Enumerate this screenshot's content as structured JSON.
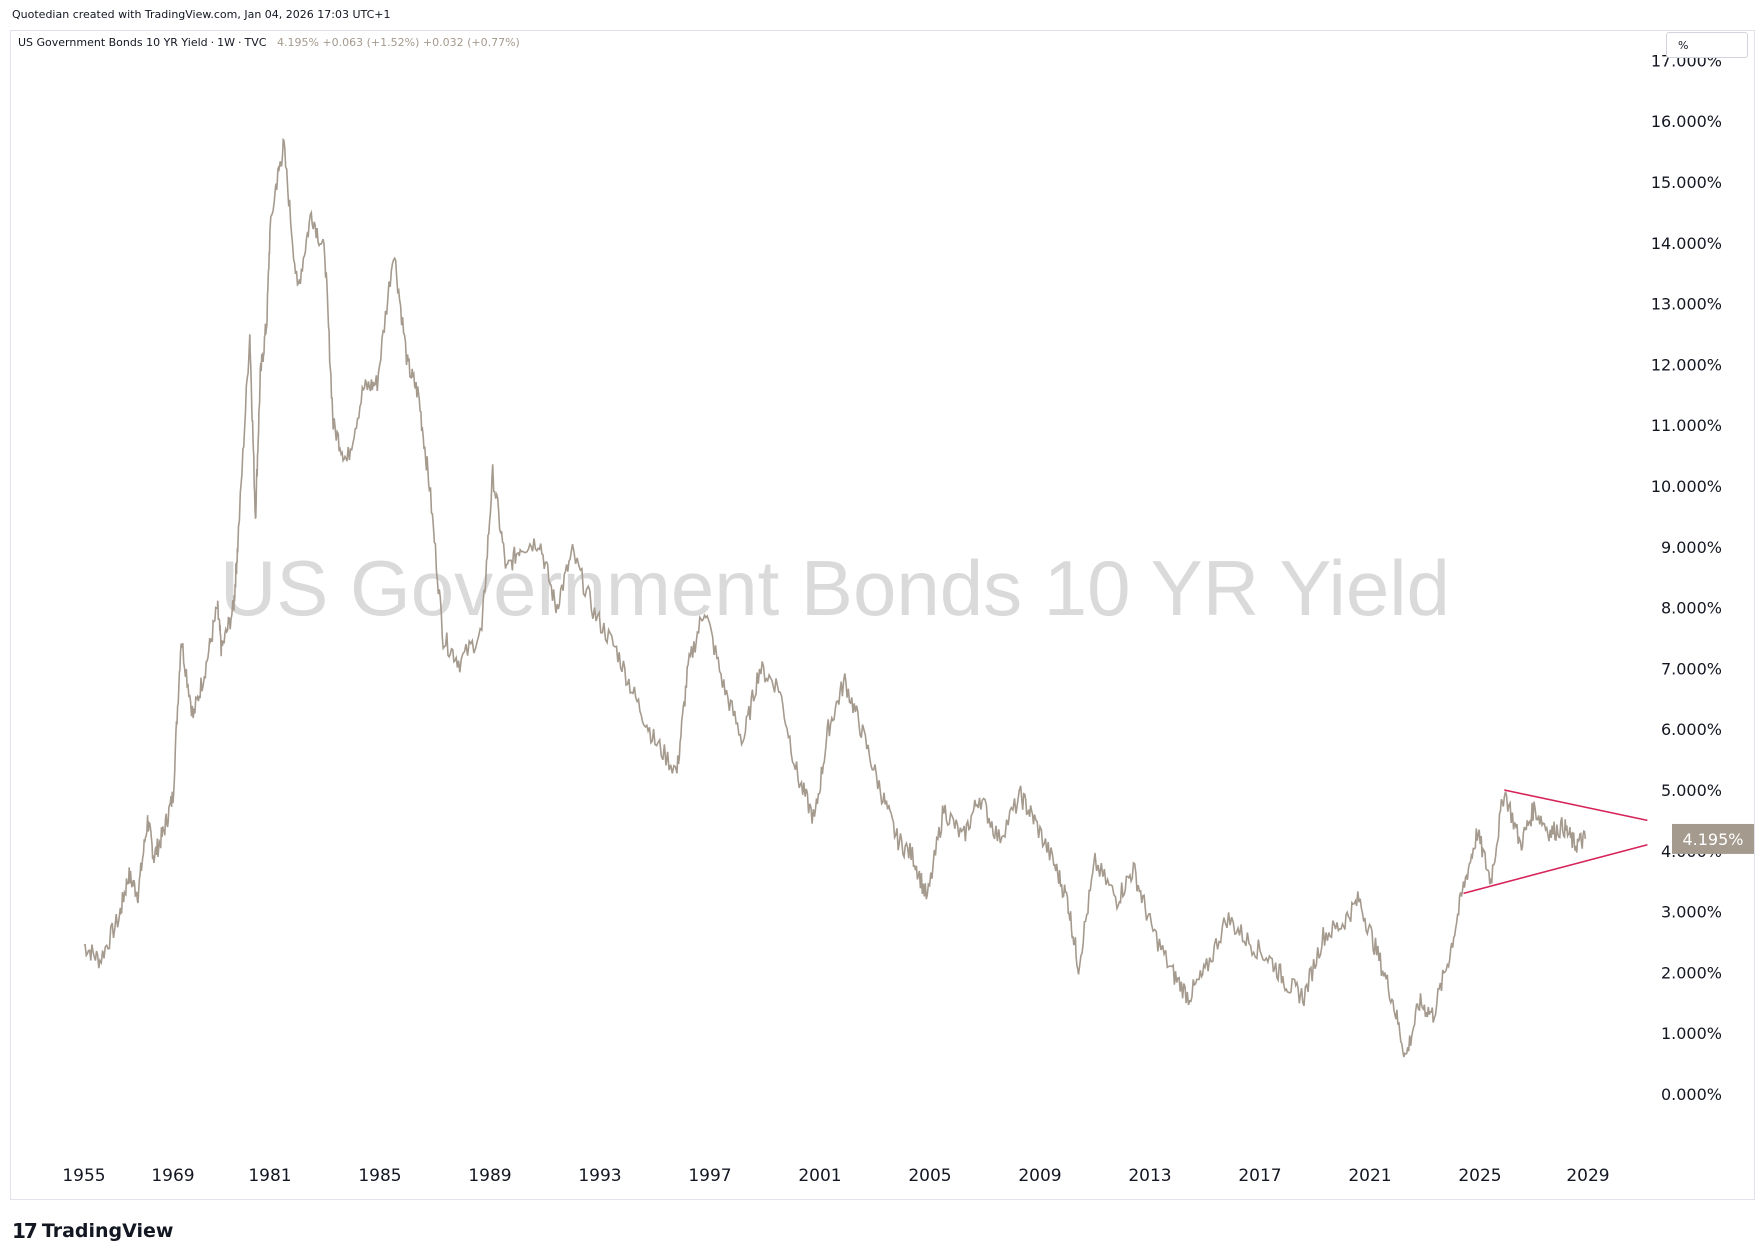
{
  "header": {
    "caption": "Quotedian created with TradingView.com, Jan 04, 2026 17:03 UTC+1"
  },
  "legend": {
    "symbol": "US Government Bonds 10 YR Yield",
    "interval": "1W",
    "source": "TVC",
    "last": "4.195%",
    "change": "+0.063",
    "change_pct": "(+1.52%)",
    "change2": "+0.032",
    "change2_pct": "(+0.77%)"
  },
  "unit_button": "%",
  "watermark": "US Government Bonds 10 YR Yield",
  "price_badge": "4.195%",
  "footer": {
    "brand": "TradingView"
  },
  "colors": {
    "series": "#a59a8e",
    "triangle": "#d6245b",
    "badge_bg": "#a59a8e",
    "watermark": "#dadada"
  },
  "chart_data": {
    "type": "line",
    "title": "US Government Bonds 10 YR Yield",
    "ylim": [
      0,
      17
    ],
    "y_ticks": [
      "0.000%",
      "1.000%",
      "2.000%",
      "3.000%",
      "4.000%",
      "5.000%",
      "6.000%",
      "7.000%",
      "8.000%",
      "9.000%",
      "10.000%",
      "11.000%",
      "12.000%",
      "13.000%",
      "14.000%",
      "15.000%",
      "16.000%",
      "17.000%"
    ],
    "x_ticks": [
      "1955",
      "1969",
      "1981",
      "1985",
      "1989",
      "1993",
      "1997",
      "2001",
      "2005",
      "2009",
      "2013",
      "2017",
      "2021",
      "2025",
      "2029"
    ],
    "series": [
      {
        "points": [
          [
            1955.0,
            2.45
          ],
          [
            1957.5,
            2.2
          ],
          [
            1960.5,
            2.9
          ],
          [
            1962.0,
            3.6
          ],
          [
            1963.5,
            3.3
          ],
          [
            1965.0,
            4.5
          ],
          [
            1966.0,
            3.9
          ],
          [
            1967.5,
            4.3
          ],
          [
            1969.0,
            4.9
          ],
          [
            1970.0,
            7.5
          ],
          [
            1971.5,
            6.2
          ],
          [
            1973.0,
            7.0
          ],
          [
            1974.5,
            8.0
          ],
          [
            1975.0,
            7.3
          ],
          [
            1976.5,
            8.0
          ],
          [
            1977.0,
            9.0
          ],
          [
            1978.5,
            12.5
          ],
          [
            1979.2,
            9.5
          ],
          [
            1979.8,
            11.8
          ],
          [
            1980.6,
            12.7
          ],
          [
            1981.2,
            14.9
          ],
          [
            1981.5,
            15.6
          ],
          [
            1982.0,
            13.2
          ],
          [
            1982.5,
            14.5
          ],
          [
            1983.0,
            13.8
          ],
          [
            1983.3,
            11.0
          ],
          [
            1983.8,
            10.4
          ],
          [
            1984.4,
            11.6
          ],
          [
            1984.9,
            11.7
          ],
          [
            1985.5,
            13.9
          ],
          [
            1986.0,
            12.0
          ],
          [
            1986.4,
            11.5
          ],
          [
            1986.8,
            10.0
          ],
          [
            1987.3,
            7.5
          ],
          [
            1987.9,
            7.1
          ],
          [
            1988.7,
            7.6
          ],
          [
            1989.1,
            10.2
          ],
          [
            1989.6,
            8.6
          ],
          [
            1990.1,
            9.0
          ],
          [
            1990.8,
            9.1
          ],
          [
            1991.4,
            8.0
          ],
          [
            1992.0,
            8.9
          ],
          [
            1992.8,
            7.9
          ],
          [
            1993.6,
            7.3
          ],
          [
            1994.3,
            6.5
          ],
          [
            1995.0,
            5.8
          ],
          [
            1995.8,
            5.3
          ],
          [
            1996.2,
            7.0
          ],
          [
            1996.8,
            8.0
          ],
          [
            1997.5,
            6.7
          ],
          [
            1998.2,
            5.8
          ],
          [
            1998.8,
            7.0
          ],
          [
            1999.5,
            6.7
          ],
          [
            2000.2,
            5.2
          ],
          [
            2000.8,
            4.5
          ],
          [
            2001.3,
            6.0
          ],
          [
            2001.9,
            6.8
          ],
          [
            2002.5,
            6.0
          ],
          [
            2003.2,
            5.0
          ],
          [
            2003.8,
            4.2
          ],
          [
            2004.4,
            3.9
          ],
          [
            2004.9,
            3.2
          ],
          [
            2005.5,
            4.7
          ],
          [
            2006.2,
            4.2
          ],
          [
            2006.8,
            4.9
          ],
          [
            2007.5,
            4.2
          ],
          [
            2008.3,
            4.9
          ],
          [
            2008.8,
            4.5
          ],
          [
            2009.5,
            3.8
          ],
          [
            2010.0,
            3.2
          ],
          [
            2010.4,
            2.1
          ],
          [
            2011.0,
            3.8
          ],
          [
            2011.8,
            3.2
          ],
          [
            2012.4,
            3.7
          ],
          [
            2013.0,
            2.8
          ],
          [
            2013.8,
            2.0
          ],
          [
            2014.4,
            1.6
          ],
          [
            2015.0,
            2.0
          ],
          [
            2015.8,
            2.9
          ],
          [
            2016.6,
            2.5
          ],
          [
            2017.4,
            2.2
          ],
          [
            2018.0,
            1.8
          ],
          [
            2018.6,
            1.6
          ],
          [
            2019.3,
            2.6
          ],
          [
            2020.0,
            2.8
          ],
          [
            2020.6,
            3.2
          ],
          [
            2021.2,
            2.4
          ],
          [
            2021.8,
            1.6
          ],
          [
            2022.3,
            0.6
          ],
          [
            2022.8,
            1.5
          ],
          [
            2023.3,
            1.3
          ],
          [
            2023.9,
            2.3
          ],
          [
            2024.4,
            3.4
          ],
          [
            2024.9,
            4.3
          ],
          [
            2025.4,
            3.5
          ],
          [
            2025.9,
            5.0
          ],
          [
            2026.5,
            4.1
          ],
          [
            2027.0,
            4.7
          ],
          [
            2027.6,
            4.3
          ],
          [
            2028.1,
            4.4
          ],
          [
            2028.5,
            4.1
          ],
          [
            2028.9,
            4.195
          ]
        ]
      }
    ],
    "annotations": [
      {
        "type": "triangle",
        "upper": [
          [
            2025.9,
            5.0
          ],
          [
            2031.2,
            4.5
          ]
        ],
        "lower": [
          [
            2024.4,
            3.3
          ],
          [
            2031.2,
            4.1
          ]
        ]
      }
    ]
  }
}
